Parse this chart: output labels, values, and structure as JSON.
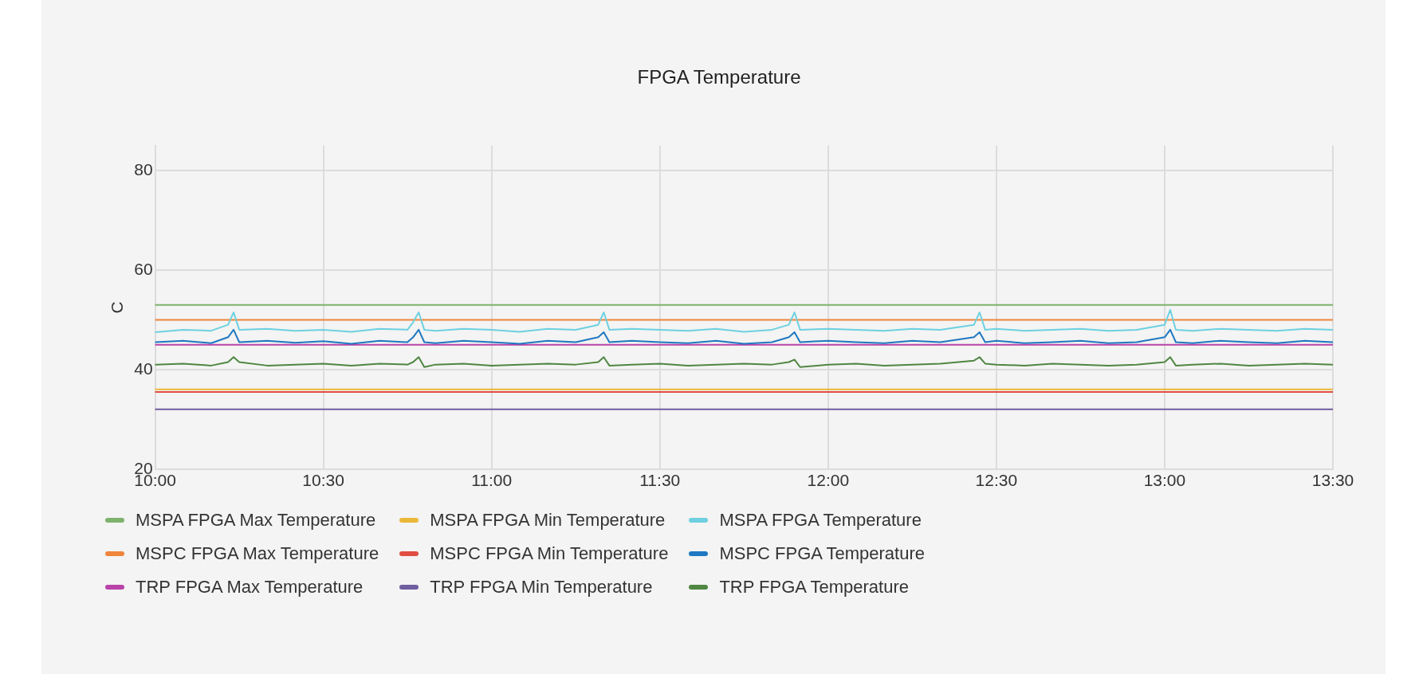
{
  "chart_data": {
    "type": "line",
    "title": "FPGA Temperature",
    "ylabel": "C",
    "grid": true,
    "legend": "bottom",
    "marker": "none",
    "line_style": "solid",
    "xlim": [
      10,
      13.5
    ],
    "xticks": [
      {
        "value": 10,
        "label": "10:00"
      },
      {
        "value": 10.5,
        "label": "10:30"
      },
      {
        "value": 11,
        "label": "11:00"
      },
      {
        "value": 11.5,
        "label": "11:30"
      },
      {
        "value": 12,
        "label": "12:00"
      },
      {
        "value": 12.5,
        "label": "12:30"
      },
      {
        "value": 13,
        "label": "13:00"
      },
      {
        "value": 13.5,
        "label": "13:30"
      }
    ],
    "ylim": [
      20,
      85
    ],
    "yticks": [
      20,
      40,
      60,
      80
    ],
    "x": [
      10,
      10.0833,
      10.1667,
      10.2167,
      10.2333,
      10.25,
      10.3333,
      10.4167,
      10.5,
      10.5833,
      10.6667,
      10.75,
      10.7667,
      10.7833,
      10.8,
      10.8333,
      10.9167,
      11,
      11.0833,
      11.1667,
      11.25,
      11.3167,
      11.3333,
      11.35,
      11.4167,
      11.5,
      11.5833,
      11.6667,
      11.75,
      11.8333,
      11.8833,
      11.9,
      11.9167,
      12,
      12.0833,
      12.1667,
      12.25,
      12.3333,
      12.4333,
      12.45,
      12.4667,
      12.5,
      12.5833,
      12.6667,
      12.75,
      12.8333,
      12.9167,
      13,
      13.0167,
      13.0333,
      13.0833,
      13.1667,
      13.25,
      13.3333,
      13.4167,
      13.5
    ],
    "series": [
      {
        "name": "MSPA FPGA Max Temperature",
        "color": "#7eb26d",
        "values": [
          53,
          53,
          53,
          53,
          53,
          53,
          53,
          53,
          53,
          53,
          53,
          53,
          53,
          53,
          53,
          53,
          53,
          53,
          53,
          53,
          53,
          53,
          53,
          53,
          53,
          53,
          53,
          53,
          53,
          53,
          53,
          53,
          53,
          53,
          53,
          53,
          53,
          53,
          53,
          53,
          53,
          53,
          53,
          53,
          53,
          53,
          53,
          53,
          53,
          53,
          53,
          53,
          53,
          53,
          53,
          53
        ]
      },
      {
        "name": "MSPA FPGA Min Temperature",
        "color": "#eab839",
        "values": [
          36,
          36,
          36,
          36,
          36,
          36,
          36,
          36,
          36,
          36,
          36,
          36,
          36,
          36,
          36,
          36,
          36,
          36,
          36,
          36,
          36,
          36,
          36,
          36,
          36,
          36,
          36,
          36,
          36,
          36,
          36,
          36,
          36,
          36,
          36,
          36,
          36,
          36,
          36,
          36,
          36,
          36,
          36,
          36,
          36,
          36,
          36,
          36,
          36,
          36,
          36,
          36,
          36,
          36,
          36,
          36
        ]
      },
      {
        "name": "MSPA FPGA Temperature",
        "color": "#6ed0e0",
        "values": [
          47.5,
          48,
          47.8,
          49,
          51.5,
          48,
          48.2,
          47.8,
          48,
          47.6,
          48.2,
          48,
          49.5,
          51.5,
          48,
          47.8,
          48.2,
          48,
          47.6,
          48.2,
          48,
          49,
          51.5,
          48,
          48.2,
          48,
          47.8,
          48.2,
          47.6,
          48,
          49,
          51.5,
          48,
          48.2,
          48,
          47.8,
          48.2,
          48,
          49,
          51.5,
          48,
          48.2,
          47.8,
          48,
          48.2,
          47.8,
          48,
          49,
          52,
          48,
          47.8,
          48.2,
          48,
          47.8,
          48.2,
          48
        ]
      },
      {
        "name": "MSPC FPGA Max Temperature",
        "color": "#ef843c",
        "values": [
          50,
          50,
          50,
          50,
          50,
          50,
          50,
          50,
          50,
          50,
          50,
          50,
          50,
          50,
          50,
          50,
          50,
          50,
          50,
          50,
          50,
          50,
          50,
          50,
          50,
          50,
          50,
          50,
          50,
          50,
          50,
          50,
          50,
          50,
          50,
          50,
          50,
          50,
          50,
          50,
          50,
          50,
          50,
          50,
          50,
          50,
          50,
          50,
          50,
          50,
          50,
          50,
          50,
          50,
          50,
          50
        ]
      },
      {
        "name": "MSPC FPGA Min Temperature",
        "color": "#e24d42",
        "values": [
          35.5,
          35.5,
          35.5,
          35.5,
          35.5,
          35.5,
          35.5,
          35.5,
          35.5,
          35.5,
          35.5,
          35.5,
          35.5,
          35.5,
          35.5,
          35.5,
          35.5,
          35.5,
          35.5,
          35.5,
          35.5,
          35.5,
          35.5,
          35.5,
          35.5,
          35.5,
          35.5,
          35.5,
          35.5,
          35.5,
          35.5,
          35.5,
          35.5,
          35.5,
          35.5,
          35.5,
          35.5,
          35.5,
          35.5,
          35.5,
          35.5,
          35.5,
          35.5,
          35.5,
          35.5,
          35.5,
          35.5,
          35.5,
          35.5,
          35.5,
          35.5,
          35.5,
          35.5,
          35.5,
          35.5,
          35.5
        ]
      },
      {
        "name": "MSPC FPGA Temperature",
        "color": "#1f78c1",
        "values": [
          45.5,
          45.8,
          45.3,
          46.5,
          48,
          45.5,
          45.8,
          45.4,
          45.7,
          45.2,
          45.8,
          45.5,
          46.5,
          48,
          45.5,
          45.3,
          45.8,
          45.5,
          45.2,
          45.8,
          45.5,
          46.5,
          47.5,
          45.5,
          45.8,
          45.5,
          45.3,
          45.8,
          45.2,
          45.5,
          46.5,
          47.5,
          45.5,
          45.8,
          45.5,
          45.3,
          45.8,
          45.5,
          46.5,
          47.5,
          45.5,
          45.8,
          45.3,
          45.5,
          45.8,
          45.3,
          45.5,
          46.5,
          48,
          45.5,
          45.3,
          45.8,
          45.5,
          45.3,
          45.8,
          45.5
        ]
      },
      {
        "name": "TRP FPGA Max Temperature",
        "color": "#ba43a9",
        "values": [
          45,
          45,
          45,
          45,
          45,
          45,
          45,
          45,
          45,
          45,
          45,
          45,
          45,
          45,
          45,
          45,
          45,
          45,
          45,
          45,
          45,
          45,
          45,
          45,
          45,
          45,
          45,
          45,
          45,
          45,
          45,
          45,
          45,
          45,
          45,
          45,
          45,
          45,
          45,
          45,
          45,
          45,
          45,
          45,
          45,
          45,
          45,
          45,
          45,
          45,
          45,
          45,
          45,
          45,
          45,
          45
        ]
      },
      {
        "name": "TRP FPGA Min Temperature",
        "color": "#705da0",
        "values": [
          32,
          32,
          32,
          32,
          32,
          32,
          32,
          32,
          32,
          32,
          32,
          32,
          32,
          32,
          32,
          32,
          32,
          32,
          32,
          32,
          32,
          32,
          32,
          32,
          32,
          32,
          32,
          32,
          32,
          32,
          32,
          32,
          32,
          32,
          32,
          32,
          32,
          32,
          32,
          32,
          32,
          32,
          32,
          32,
          32,
          32,
          32,
          32,
          32,
          32,
          32,
          32,
          32,
          32,
          32,
          32
        ]
      },
      {
        "name": "TRP FPGA Temperature",
        "color": "#508642",
        "values": [
          41,
          41.2,
          40.8,
          41.5,
          42.5,
          41.5,
          40.8,
          41,
          41.2,
          40.8,
          41.2,
          41,
          41.5,
          42.5,
          40.5,
          41,
          41.2,
          40.8,
          41,
          41.2,
          41,
          41.5,
          42.5,
          40.8,
          41,
          41.2,
          40.8,
          41,
          41.2,
          41,
          41.5,
          42,
          40.5,
          41,
          41.2,
          40.8,
          41,
          41.2,
          41.8,
          42.5,
          41.2,
          41,
          40.8,
          41.2,
          41,
          40.8,
          41,
          41.5,
          42.5,
          40.8,
          41,
          41.2,
          40.8,
          41,
          41.2,
          41
        ]
      }
    ]
  }
}
